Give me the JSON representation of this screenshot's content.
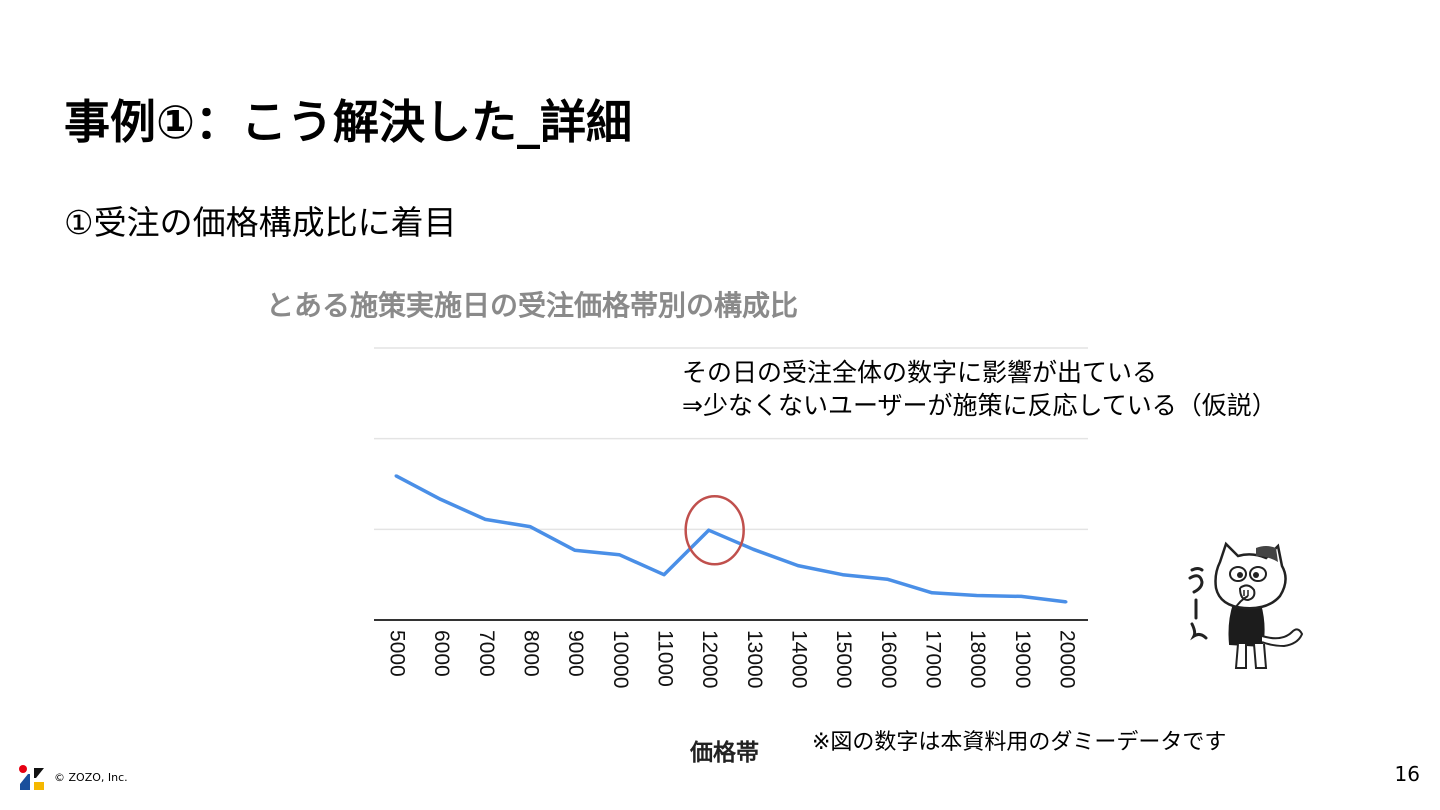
{
  "slide": {
    "title": "事例①：こう解決した_詳細",
    "subtitle": "①受注の価格構成比に着目",
    "page_number": "16",
    "copyright": "© ZOZO, Inc.",
    "note": "※図の数字は本資料用のダミーデータです"
  },
  "annotation": {
    "line1": "その日の受注全体の数字に影響が出ている",
    "line2": "⇒少なくないユーザーが施策に反応している（仮説）"
  },
  "mascot": {
    "caption": "うーん"
  },
  "colors": {
    "line": "#4a8fe7",
    "highlight_circle": "#c0504d",
    "logo_red": "#e60012",
    "logo_blue": "#1a4f9c",
    "logo_yellow": "#f5b800"
  },
  "chart_data": {
    "type": "line",
    "title": "とある施策実施日の受注価格帯別の構成比",
    "xlabel": "価格帯",
    "ylabel": "",
    "categories": [
      "5000",
      "6000",
      "7000",
      "8000",
      "9000",
      "10000",
      "11000",
      "12000",
      "13000",
      "14000",
      "15000",
      "16000",
      "17000",
      "18000",
      "19000",
      "20000"
    ],
    "values": [
      15.9,
      13.3,
      11.1,
      10.3,
      7.7,
      7.2,
      5.0,
      9.9,
      7.8,
      6.0,
      5.0,
      4.5,
      3.0,
      2.7,
      2.6,
      2.0
    ],
    "ylim": [
      0,
      30
    ],
    "grid": true,
    "highlight_category": "12000"
  }
}
